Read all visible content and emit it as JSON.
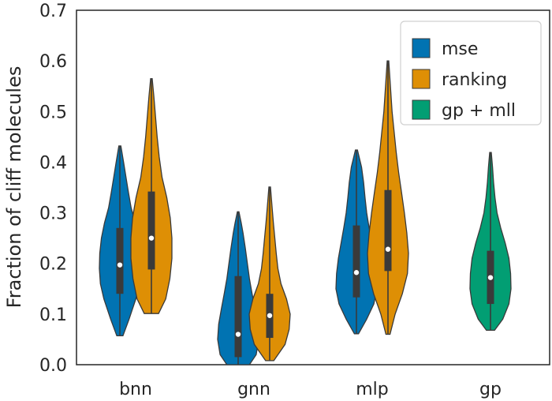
{
  "chart_data": {
    "type": "violin",
    "title": "",
    "xlabel": "",
    "ylabel": "Fraction of cliff molecules",
    "ylim": [
      0,
      0.7
    ],
    "yticks": [
      0.0,
      0.1,
      0.2,
      0.3,
      0.4,
      0.5,
      0.6,
      0.7
    ],
    "ytick_labels": [
      "0.0",
      "0.1",
      "0.2",
      "0.3",
      "0.4",
      "0.5",
      "0.6",
      "0.7"
    ],
    "categories": [
      "bnn",
      "gnn",
      "mlp",
      "gp"
    ],
    "legend": {
      "position": "top-right",
      "entries": [
        {
          "label": "mse",
          "color": "#0173b2"
        },
        {
          "label": "ranking",
          "color": "#de8f05"
        },
        {
          "label": "gp + mll",
          "color": "#029e73"
        }
      ]
    },
    "series": [
      {
        "name": "mse",
        "color": "#0173b2",
        "violins": [
          {
            "category": "bnn",
            "min": 0.057,
            "max": 0.432,
            "q1": 0.14,
            "median": 0.197,
            "q3": 0.27,
            "profile": [
              [
                0.057,
                0.15
              ],
              [
                0.09,
                0.45
              ],
              [
                0.13,
                0.78
              ],
              [
                0.16,
                0.95
              ],
              [
                0.19,
                1.0
              ],
              [
                0.22,
                0.98
              ],
              [
                0.25,
                0.9
              ],
              [
                0.28,
                0.75
              ],
              [
                0.31,
                0.55
              ],
              [
                0.34,
                0.42
              ],
              [
                0.37,
                0.3
              ],
              [
                0.4,
                0.18
              ],
              [
                0.432,
                0.05
              ]
            ]
          },
          {
            "category": "gnn",
            "min": 0.0,
            "max": 0.302,
            "q1": 0.015,
            "median": 0.06,
            "q3": 0.175,
            "profile": [
              [
                0.0,
                0.55
              ],
              [
                0.02,
                0.88
              ],
              [
                0.05,
                1.0
              ],
              [
                0.08,
                0.95
              ],
              [
                0.11,
                0.82
              ],
              [
                0.14,
                0.68
              ],
              [
                0.17,
                0.55
              ],
              [
                0.2,
                0.45
              ],
              [
                0.23,
                0.35
              ],
              [
                0.26,
                0.24
              ],
              [
                0.28,
                0.15
              ],
              [
                0.302,
                0.04
              ]
            ]
          },
          {
            "category": "mlp",
            "min": 0.061,
            "max": 0.424,
            "q1": 0.133,
            "median": 0.182,
            "q3": 0.275,
            "profile": [
              [
                0.061,
                0.1
              ],
              [
                0.09,
                0.5
              ],
              [
                0.12,
                0.85
              ],
              [
                0.15,
                1.0
              ],
              [
                0.18,
                0.97
              ],
              [
                0.21,
                0.88
              ],
              [
                0.24,
                0.75
              ],
              [
                0.27,
                0.62
              ],
              [
                0.3,
                0.5
              ],
              [
                0.33,
                0.42
              ],
              [
                0.36,
                0.35
              ],
              [
                0.39,
                0.25
              ],
              [
                0.424,
                0.05
              ]
            ]
          }
        ]
      },
      {
        "name": "ranking",
        "color": "#de8f05",
        "violins": [
          {
            "category": "bnn",
            "min": 0.101,
            "max": 0.565,
            "q1": 0.188,
            "median": 0.25,
            "q3": 0.342,
            "profile": [
              [
                0.101,
                0.35
              ],
              [
                0.13,
                0.7
              ],
              [
                0.17,
                0.9
              ],
              [
                0.21,
                1.0
              ],
              [
                0.25,
                1.0
              ],
              [
                0.29,
                0.92
              ],
              [
                0.33,
                0.75
              ],
              [
                0.37,
                0.52
              ],
              [
                0.41,
                0.38
              ],
              [
                0.45,
                0.28
              ],
              [
                0.49,
                0.2
              ],
              [
                0.53,
                0.12
              ],
              [
                0.565,
                0.04
              ]
            ]
          },
          {
            "category": "gnn",
            "min": 0.008,
            "max": 0.351,
            "q1": 0.053,
            "median": 0.097,
            "q3": 0.14,
            "profile": [
              [
                0.008,
                0.2
              ],
              [
                0.04,
                0.75
              ],
              [
                0.07,
                0.95
              ],
              [
                0.1,
                1.0
              ],
              [
                0.13,
                0.82
              ],
              [
                0.16,
                0.55
              ],
              [
                0.19,
                0.4
              ],
              [
                0.22,
                0.32
              ],
              [
                0.25,
                0.25
              ],
              [
                0.28,
                0.18
              ],
              [
                0.31,
                0.12
              ],
              [
                0.351,
                0.04
              ]
            ]
          },
          {
            "category": "mlp",
            "min": 0.06,
            "max": 0.6,
            "q1": 0.185,
            "median": 0.228,
            "q3": 0.345,
            "profile": [
              [
                0.06,
                0.1
              ],
              [
                0.1,
                0.35
              ],
              [
                0.14,
                0.7
              ],
              [
                0.18,
                0.95
              ],
              [
                0.22,
                1.0
              ],
              [
                0.26,
                0.92
              ],
              [
                0.3,
                0.8
              ],
              [
                0.34,
                0.66
              ],
              [
                0.38,
                0.52
              ],
              [
                0.42,
                0.4
              ],
              [
                0.46,
                0.3
              ],
              [
                0.5,
                0.2
              ],
              [
                0.55,
                0.12
              ],
              [
                0.6,
                0.04
              ]
            ]
          }
        ]
      },
      {
        "name": "gp + mll",
        "color": "#029e73",
        "violins": [
          {
            "category": "gp",
            "min": 0.068,
            "max": 0.419,
            "q1": 0.12,
            "median": 0.172,
            "q3": 0.225,
            "profile": [
              [
                0.068,
                0.2
              ],
              [
                0.09,
                0.6
              ],
              [
                0.12,
                0.9
              ],
              [
                0.15,
                1.0
              ],
              [
                0.18,
                0.98
              ],
              [
                0.21,
                0.9
              ],
              [
                0.24,
                0.72
              ],
              [
                0.27,
                0.5
              ],
              [
                0.3,
                0.32
              ],
              [
                0.33,
                0.22
              ],
              [
                0.36,
                0.15
              ],
              [
                0.39,
                0.1
              ],
              [
                0.419,
                0.04
              ]
            ]
          }
        ]
      }
    ]
  }
}
